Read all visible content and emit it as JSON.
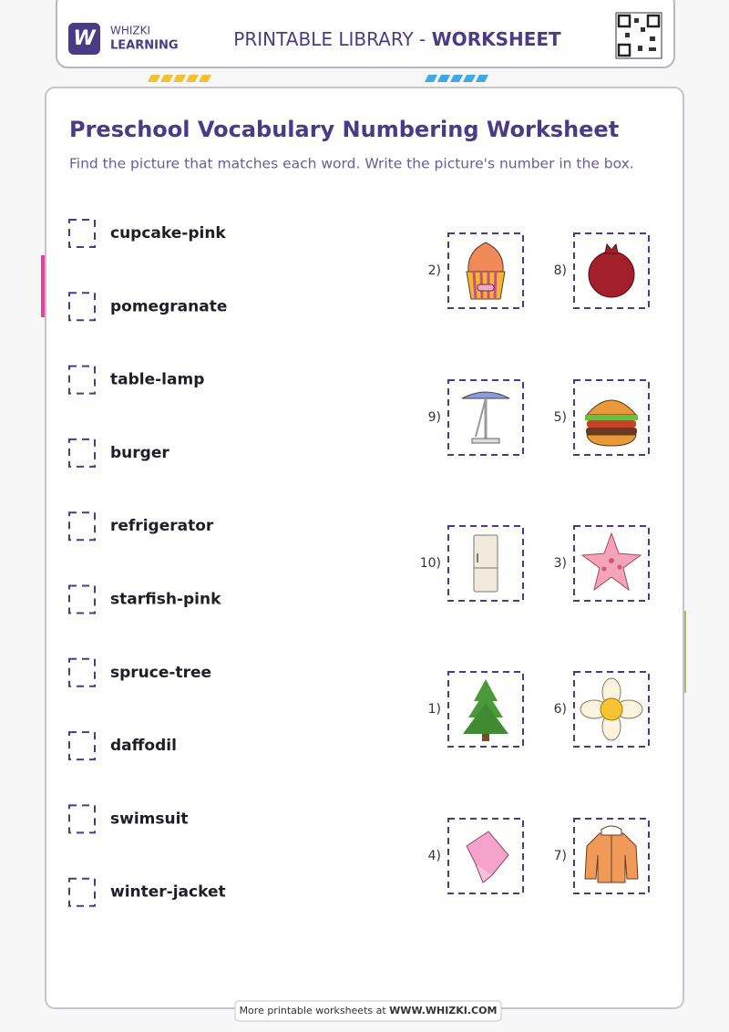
{
  "header": {
    "logo_line1": "WHIZKI",
    "logo_line2": "LEARNING",
    "library": "PRINTABLE LIBRARY - ",
    "worksheet": "WORKSHEET"
  },
  "title": "Preschool Vocabulary Numbering Worksheet",
  "instructions": "Find the picture that matches each word. Write the picture's number in the box.",
  "words": [
    "cupcake-pink",
    "pomegranate",
    "table-lamp",
    "burger",
    "refrigerator",
    "starfish-pink",
    "spruce-tree",
    "daffodil",
    "swimsuit",
    "winter-jacket"
  ],
  "pictures": [
    {
      "label": "2)"
    },
    {
      "label": "8)"
    },
    {
      "label": "9)"
    },
    {
      "label": "5)"
    },
    {
      "label": "10)"
    },
    {
      "label": "3)"
    },
    {
      "label": "1)"
    },
    {
      "label": "6)"
    },
    {
      "label": "4)"
    },
    {
      "label": "7)"
    }
  ],
  "footer": {
    "text": "More printable worksheets at ",
    "url": "WWW.WHIZKI.COM"
  }
}
